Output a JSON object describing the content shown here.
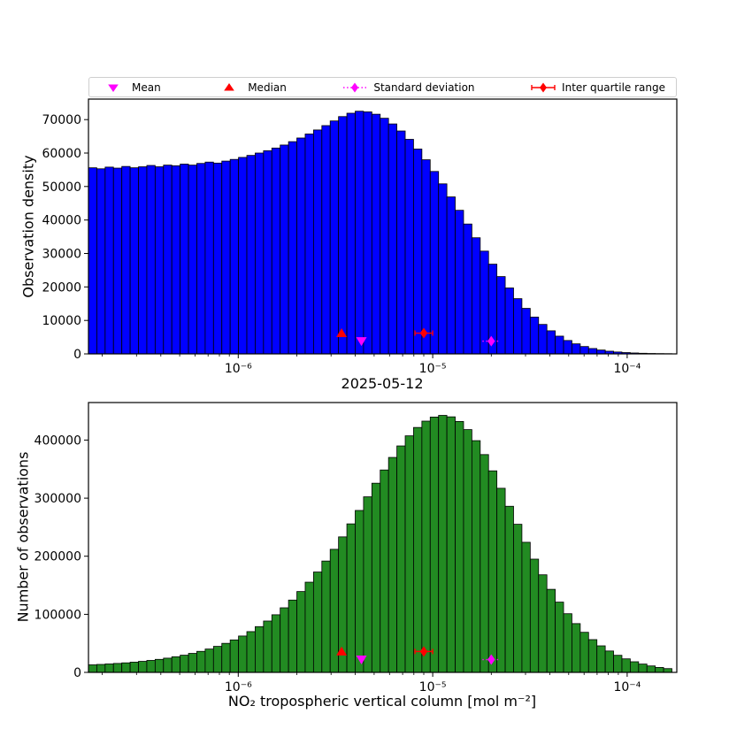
{
  "legend": {
    "items": [
      {
        "label": "Mean",
        "marker": "triangle-down",
        "color": "#FF00FF"
      },
      {
        "label": "Median",
        "marker": "triangle-up",
        "color": "#FF0000"
      },
      {
        "label": "Standard deviation",
        "marker": "thin-diamond-dotted-line",
        "color": "#FF00FF"
      },
      {
        "label": "Inter quartile range",
        "marker": "thin-diamond-errorbar",
        "color": "#FF0000"
      }
    ]
  },
  "chart_data": [
    {
      "type": "histogram",
      "panel": "top",
      "ylabel": "Observation density",
      "x_scale": "log",
      "bin_edges_log10": {
        "min": -6.77,
        "max": -3.77,
        "n_bins": 70
      },
      "xlim_log10": [
        -6.77,
        -3.745
      ],
      "ylim": [
        0,
        76125
      ],
      "yticks": [
        0,
        10000,
        20000,
        30000,
        40000,
        50000,
        60000,
        70000
      ],
      "xticks_log10": [
        -6,
        -5,
        -4
      ],
      "xtick_labels": [
        "10⁻⁶",
        "10⁻⁵",
        "10⁻⁴"
      ],
      "bar_color": "#0000FF",
      "bar_edge_color": "#000000",
      "values": [
        55600,
        55300,
        55800,
        55500,
        56000,
        55600,
        55900,
        56300,
        55900,
        56400,
        56200,
        56700,
        56400,
        56900,
        57300,
        57000,
        57600,
        58100,
        58700,
        59300,
        60000,
        60700,
        61500,
        62400,
        63400,
        64500,
        65700,
        66900,
        68200,
        69600,
        70900,
        71900,
        72500,
        72300,
        71600,
        70400,
        68700,
        66600,
        64100,
        61200,
        58000,
        54500,
        50800,
        46900,
        42900,
        38800,
        34700,
        30700,
        26800,
        23100,
        19700,
        16500,
        13600,
        11000,
        8800,
        6900,
        5300,
        4000,
        3000,
        2200,
        1600,
        1150,
        800,
        560,
        390,
        270,
        185,
        125,
        85,
        60
      ],
      "markers": [
        {
          "name": "median",
          "shape": "triangle-up",
          "color": "#FF0000",
          "x": 3.4e-06,
          "y": 6200
        },
        {
          "name": "mean",
          "shape": "triangle-down",
          "color": "#FF00FF",
          "x": 4.3e-06,
          "y": 3800
        },
        {
          "name": "iqr",
          "shape": "diamond-solid-line",
          "color": "#FF0000",
          "x": 9e-06,
          "y": 6200
        },
        {
          "name": "std",
          "shape": "diamond-dotted-line",
          "color": "#FF00FF",
          "x": 2e-05,
          "y": 3800
        }
      ]
    },
    {
      "type": "histogram",
      "panel": "bottom",
      "title": "2025-05-12",
      "ylabel": "Number of observations",
      "xlabel": "NO₂ tropospheric vertical column [mol m⁻²]",
      "x_scale": "log",
      "bin_edges_log10": {
        "min": -6.77,
        "max": -3.77,
        "n_bins": 70
      },
      "xlim_log10": [
        -6.77,
        -3.745
      ],
      "ylim": [
        0,
        464600
      ],
      "yticks": [
        0,
        100000,
        200000,
        300000,
        400000
      ],
      "xticks_log10": [
        -6,
        -5,
        -4
      ],
      "xtick_labels": [
        "10⁻⁶",
        "10⁻⁵",
        "10⁻⁴"
      ],
      "bar_color": "#228B22",
      "bar_edge_color": "#000000",
      "values": [
        13000,
        13700,
        14500,
        15400,
        16400,
        17600,
        19000,
        20600,
        22400,
        24500,
        26900,
        29600,
        32700,
        36200,
        40200,
        44800,
        50000,
        55900,
        62600,
        70200,
        78800,
        88400,
        99200,
        111200,
        124500,
        139200,
        155300,
        172800,
        191700,
        211900,
        233300,
        255700,
        278800,
        302300,
        325700,
        348500,
        370100,
        389900,
        407300,
        421700,
        432600,
        439600,
        442500,
        440000,
        432000,
        418000,
        399000,
        375000,
        347000,
        317000,
        286000,
        255000,
        224000,
        195000,
        168000,
        143000,
        121000,
        101000,
        84000,
        69000,
        56400,
        45700,
        36800,
        29400,
        23300,
        18300,
        14300,
        11100,
        8500,
        6500
      ],
      "markers": [
        {
          "name": "median",
          "shape": "triangle-up",
          "color": "#FF0000",
          "x": 3.4e-06,
          "y": 36000
        },
        {
          "name": "mean",
          "shape": "triangle-down",
          "color": "#FF00FF",
          "x": 4.3e-06,
          "y": 22000
        },
        {
          "name": "iqr",
          "shape": "diamond-solid-line",
          "color": "#FF0000",
          "x": 9e-06,
          "y": 36000
        },
        {
          "name": "std",
          "shape": "diamond-dotted-line",
          "color": "#FF00FF",
          "x": 2e-05,
          "y": 22000
        }
      ]
    }
  ]
}
